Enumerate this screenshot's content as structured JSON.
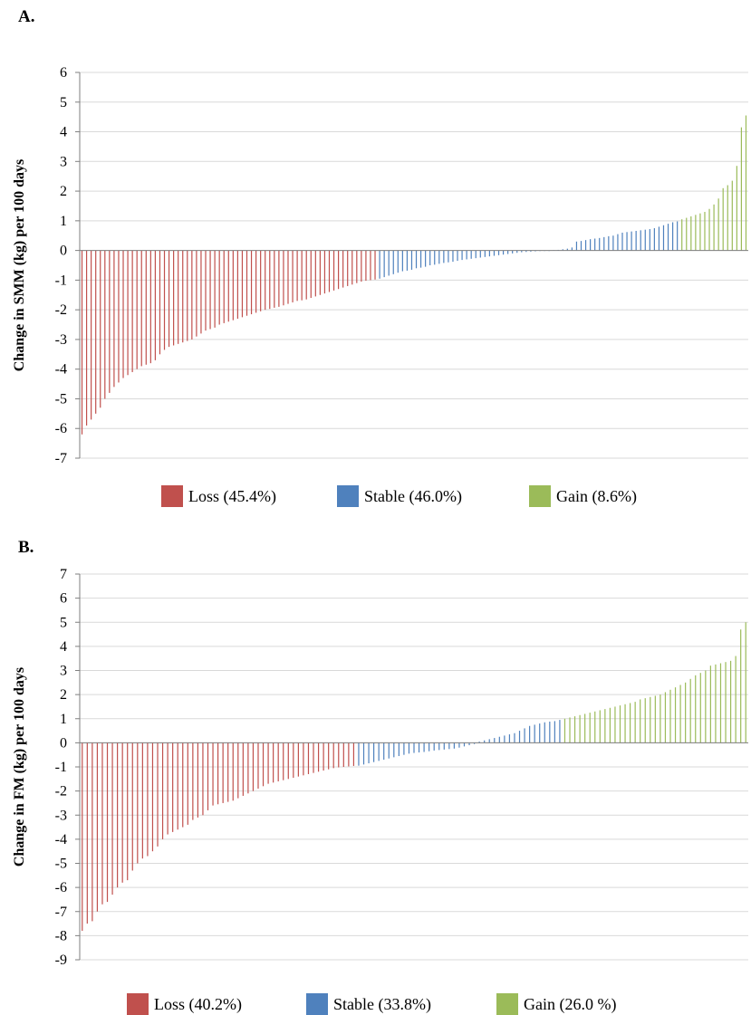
{
  "panels": {
    "a": {
      "label": "A.",
      "legend_loss": "Loss (45.4%)",
      "legend_stable": "Stable (46.0%)",
      "legend_gain": "Gain (8.6%)"
    },
    "b": {
      "label": "B.",
      "legend_loss": "Loss (40.2%)",
      "legend_stable": "Stable (33.8%)",
      "legend_gain": "Gain (26.0 %)"
    }
  },
  "colors": {
    "loss": "#c0504d",
    "stable": "#4f81bd",
    "gain": "#9bbb59",
    "grid": "#d9d9d9",
    "axis": "#7f7f7f"
  },
  "chart_data": [
    {
      "type": "bar",
      "title": "",
      "xlabel": "",
      "ylabel": "Change in SMM (kg) per 100 days",
      "ylim": [
        -7,
        6
      ],
      "yticks": [
        "6",
        "5",
        "4",
        "3",
        "2",
        "1",
        "0",
        "-1",
        "-2",
        "-3",
        "-4",
        "-5",
        "-6",
        "-7"
      ],
      "grid": true,
      "legend_position": "bottom",
      "series": [
        {
          "name": "Loss (45.4%)",
          "color_key": "loss",
          "values": [
            -6.2,
            -5.9,
            -5.7,
            -5.5,
            -5.3,
            -5.0,
            -4.8,
            -4.6,
            -4.45,
            -4.3,
            -4.2,
            -4.1,
            -4.0,
            -3.9,
            -3.85,
            -3.8,
            -3.7,
            -3.5,
            -3.35,
            -3.25,
            -3.2,
            -3.15,
            -3.1,
            -3.05,
            -3.0,
            -2.9,
            -2.8,
            -2.7,
            -2.65,
            -2.6,
            -2.5,
            -2.45,
            -2.4,
            -2.35,
            -2.3,
            -2.25,
            -2.2,
            -2.15,
            -2.1,
            -2.05,
            -2.0,
            -1.97,
            -1.93,
            -1.9,
            -1.85,
            -1.8,
            -1.75,
            -1.7,
            -1.68,
            -1.65,
            -1.6,
            -1.55,
            -1.5,
            -1.45,
            -1.4,
            -1.35,
            -1.3,
            -1.25,
            -1.2,
            -1.15,
            -1.1,
            -1.05,
            -1.02,
            -1.0,
            -0.98
          ]
        },
        {
          "name": "Stable (46.0%)",
          "color_key": "stable",
          "values": [
            -0.95,
            -0.9,
            -0.85,
            -0.8,
            -0.75,
            -0.7,
            -0.68,
            -0.65,
            -0.6,
            -0.58,
            -0.55,
            -0.5,
            -0.48,
            -0.45,
            -0.42,
            -0.4,
            -0.38,
            -0.35,
            -0.32,
            -0.3,
            -0.28,
            -0.26,
            -0.24,
            -0.22,
            -0.2,
            -0.18,
            -0.16,
            -0.14,
            -0.12,
            -0.1,
            -0.08,
            -0.06,
            -0.05,
            -0.04,
            -0.03,
            -0.02,
            -0.01,
            0.0,
            0.01,
            0.02,
            0.04,
            0.06,
            0.1,
            0.3,
            0.32,
            0.35,
            0.38,
            0.4,
            0.42,
            0.45,
            0.48,
            0.5,
            0.55,
            0.6,
            0.62,
            0.64,
            0.66,
            0.68,
            0.7,
            0.72,
            0.75,
            0.8,
            0.85,
            0.9,
            0.95,
            0.98
          ]
        },
        {
          "name": "Gain (8.6%)",
          "color_key": "gain",
          "values": [
            1.05,
            1.1,
            1.15,
            1.2,
            1.25,
            1.3,
            1.4,
            1.55,
            1.75,
            2.1,
            2.2,
            2.35,
            2.85,
            4.15,
            4.55
          ]
        }
      ]
    },
    {
      "type": "bar",
      "title": "",
      "xlabel": "",
      "ylabel": "Change in FM (kg) per 100 days",
      "ylim": [
        -9,
        7
      ],
      "yticks": [
        "7",
        "6",
        "5",
        "4",
        "3",
        "2",
        "1",
        "0",
        "-1",
        "-2",
        "-3",
        "-4",
        "-5",
        "-6",
        "-7",
        "-8",
        "-9"
      ],
      "grid": true,
      "legend_position": "bottom",
      "series": [
        {
          "name": "Loss (40.2%)",
          "color_key": "loss",
          "values": [
            -7.8,
            -7.5,
            -7.4,
            -7.0,
            -6.7,
            -6.6,
            -6.3,
            -6.0,
            -5.8,
            -5.7,
            -5.3,
            -5.0,
            -4.8,
            -4.7,
            -4.5,
            -4.3,
            -4.0,
            -3.8,
            -3.7,
            -3.6,
            -3.5,
            -3.4,
            -3.2,
            -3.1,
            -3.0,
            -2.8,
            -2.6,
            -2.55,
            -2.5,
            -2.45,
            -2.4,
            -2.3,
            -2.2,
            -2.1,
            -2.0,
            -1.9,
            -1.8,
            -1.7,
            -1.65,
            -1.6,
            -1.55,
            -1.5,
            -1.45,
            -1.4,
            -1.35,
            -1.3,
            -1.25,
            -1.2,
            -1.15,
            -1.1,
            -1.05,
            -1.02,
            -1.0,
            -0.98,
            -0.96
          ]
        },
        {
          "name": "Stable (33.8%)",
          "color_key": "stable",
          "values": [
            -0.95,
            -0.9,
            -0.85,
            -0.8,
            -0.75,
            -0.7,
            -0.65,
            -0.6,
            -0.55,
            -0.5,
            -0.45,
            -0.42,
            -0.4,
            -0.38,
            -0.35,
            -0.32,
            -0.3,
            -0.28,
            -0.26,
            -0.24,
            -0.2,
            -0.15,
            -0.1,
            -0.05,
            0.05,
            0.1,
            0.15,
            0.2,
            0.25,
            0.3,
            0.35,
            0.4,
            0.5,
            0.6,
            0.7,
            0.75,
            0.8,
            0.85,
            0.88,
            0.9,
            0.95
          ]
        },
        {
          "name": "Gain (26.0 %)",
          "color_key": "gain",
          "values": [
            1.0,
            1.05,
            1.1,
            1.15,
            1.2,
            1.25,
            1.3,
            1.35,
            1.4,
            1.45,
            1.5,
            1.55,
            1.6,
            1.65,
            1.7,
            1.8,
            1.85,
            1.9,
            1.95,
            2.0,
            2.1,
            2.2,
            2.3,
            2.4,
            2.5,
            2.65,
            2.8,
            2.9,
            3.0,
            3.2,
            3.25,
            3.3,
            3.35,
            3.4,
            3.6,
            4.7,
            5.0
          ]
        }
      ]
    }
  ]
}
